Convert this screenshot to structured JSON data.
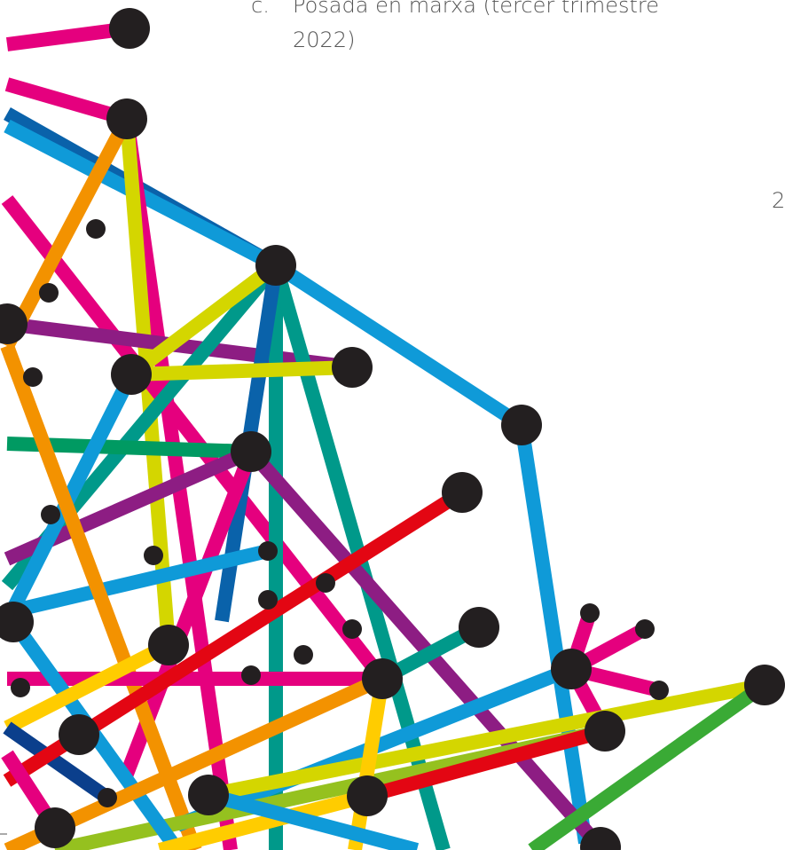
{
  "list_item": {
    "marker": "c.",
    "lines": [
      "Posada en marxa (tercer trimestre",
      "2022)"
    ]
  },
  "page_number": "2"
}
